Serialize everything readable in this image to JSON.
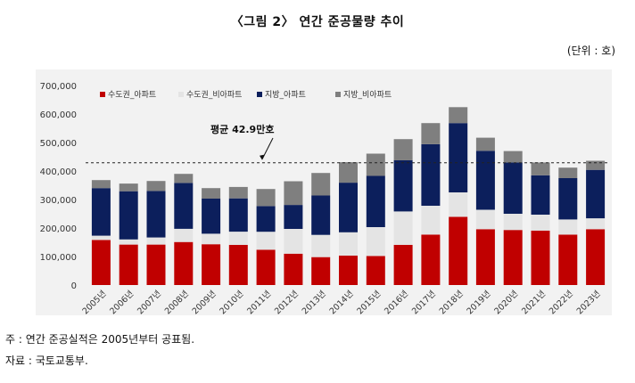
{
  "figure": {
    "title": "〈그림 2〉 연간 준공물량 추이",
    "unit": "(단위 : 호)",
    "notes": [
      "주 : 연간 준공실적은 2005년부터 공표됨.",
      "자료 : 국토교통부."
    ]
  },
  "chart_data": {
    "type": "bar",
    "stacked": true,
    "categories": [
      "2005년",
      "2006년",
      "2007년",
      "2008년",
      "2009년",
      "2010년",
      "2011년",
      "2012년",
      "2013년",
      "2014년",
      "2015년",
      "2016년",
      "2017년",
      "2018년",
      "2019년",
      "2020년",
      "2021년",
      "2022년",
      "2023년"
    ],
    "series": [
      {
        "name": "수도권_아파트",
        "color": "#c00000",
        "values": [
          158000,
          142000,
          142000,
          151000,
          143000,
          141000,
          124000,
          110000,
          98000,
          103000,
          102000,
          141000,
          177000,
          239000,
          196000,
          193000,
          191000,
          177000,
          196000
        ]
      },
      {
        "name": "수도권_비아파트",
        "color": "#e4e4e4",
        "values": [
          15000,
          18000,
          25000,
          46000,
          37000,
          46000,
          63000,
          87000,
          78000,
          82000,
          101000,
          117000,
          101000,
          86000,
          68000,
          57000,
          56000,
          53000,
          38000
        ]
      },
      {
        "name": "지방_아파트",
        "color": "#0c1f5c",
        "values": [
          167000,
          169000,
          163000,
          161000,
          123000,
          117000,
          90000,
          84000,
          138000,
          174000,
          180000,
          180000,
          216000,
          243000,
          207000,
          180000,
          138000,
          145000,
          170000
        ]
      },
      {
        "name": "지방_비아파트",
        "color": "#7f7f7f",
        "values": [
          28000,
          27000,
          35000,
          32000,
          37000,
          40000,
          60000,
          83000,
          79000,
          72000,
          78000,
          74000,
          74000,
          56000,
          46000,
          40000,
          45000,
          37000,
          32000
        ]
      }
    ],
    "ylim": [
      0,
      700000
    ],
    "yticks": [
      0,
      100000,
      200000,
      300000,
      400000,
      500000,
      600000,
      700000
    ],
    "ytick_labels": [
      "0",
      "100,000",
      "200,000",
      "300,000",
      "400,000",
      "500,000",
      "600,000",
      "700,000"
    ],
    "xlabel": "",
    "ylabel": "",
    "grid": false,
    "legend_position": "top-left",
    "average_line": {
      "value": 429000,
      "label": "평균 42.9만호"
    }
  }
}
